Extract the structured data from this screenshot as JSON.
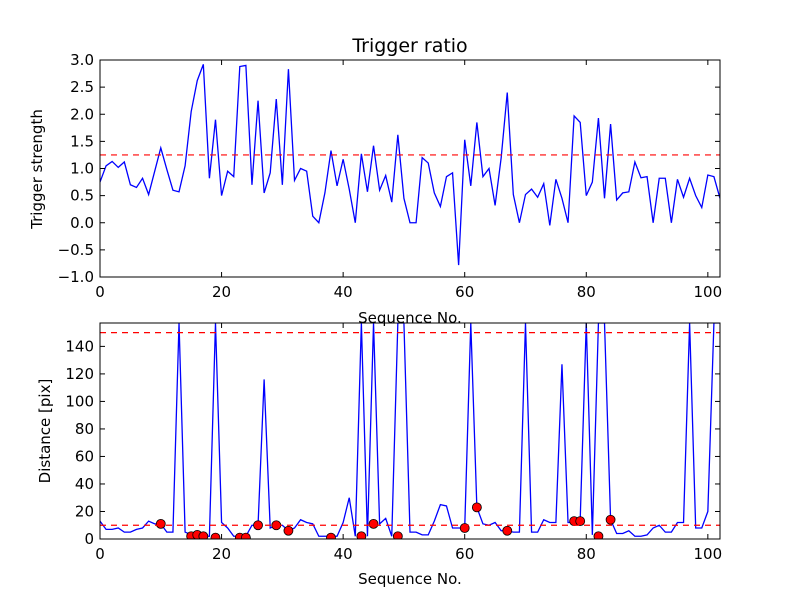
{
  "chart_data": [
    {
      "type": "line",
      "title": "Trigger ratio",
      "xlabel": "Sequence No.",
      "ylabel": "Trigger strength",
      "xlim": [
        0,
        102
      ],
      "ylim": [
        -1.0,
        3.0
      ],
      "xticks": [
        0,
        20,
        40,
        60,
        80,
        100
      ],
      "yticks": [
        -1.0,
        -0.5,
        0.0,
        0.5,
        1.0,
        1.5,
        2.0,
        2.5,
        3.0
      ],
      "ytick_labels": [
        "−1.0",
        "−0.5",
        "0.0",
        "0.5",
        "1.0",
        "1.5",
        "2.0",
        "2.5",
        "3.0"
      ],
      "grid": false,
      "series": [
        {
          "color": "#0000ff",
          "x": [
            0,
            1,
            2,
            3,
            4,
            5,
            6,
            7,
            8,
            9,
            10,
            11,
            12,
            13,
            14,
            15,
            16,
            17,
            18,
            19,
            20,
            21,
            22,
            23,
            24,
            25,
            26,
            27,
            28,
            29,
            30,
            31,
            32,
            33,
            34,
            35,
            36,
            37,
            38,
            39,
            40,
            41,
            42,
            43,
            44,
            45,
            46,
            47,
            48,
            49,
            50,
            51,
            52,
            53,
            54,
            55,
            56,
            57,
            58,
            59,
            60,
            61,
            62,
            63,
            64,
            65,
            66,
            67,
            68,
            69,
            70,
            71,
            72,
            73,
            74,
            75,
            76,
            77,
            78,
            79,
            80,
            81,
            82,
            83,
            84,
            85,
            86,
            87,
            88,
            89,
            90,
            91,
            92,
            93,
            94,
            95,
            96,
            97,
            98,
            99,
            100,
            101,
            102
          ],
          "y": [
            0.75,
            1.05,
            1.13,
            1.02,
            1.12,
            0.7,
            0.65,
            0.82,
            0.52,
            0.95,
            1.38,
            0.98,
            0.6,
            0.57,
            1.05,
            2.05,
            2.62,
            2.92,
            0.82,
            1.9,
            0.5,
            0.95,
            0.85,
            2.88,
            2.9,
            0.7,
            2.25,
            0.55,
            0.92,
            2.28,
            0.7,
            2.83,
            0.78,
            1.0,
            0.95,
            0.12,
            0.0,
            0.55,
            1.33,
            0.68,
            1.17,
            0.62,
            0.0,
            1.27,
            0.57,
            1.42,
            0.6,
            0.87,
            0.38,
            1.62,
            0.45,
            0.0,
            0.0,
            1.2,
            1.1,
            0.55,
            0.3,
            0.85,
            0.92,
            -0.78,
            1.53,
            0.68,
            1.85,
            0.85,
            1.0,
            0.32,
            1.2,
            2.4,
            0.52,
            0.0,
            0.52,
            0.62,
            0.47,
            0.72,
            -0.05,
            0.8,
            0.45,
            0.0,
            1.97,
            1.85,
            0.5,
            0.75,
            1.93,
            0.45,
            1.82,
            0.42,
            0.55,
            0.57,
            1.12,
            0.83,
            0.85,
            0.0,
            0.82,
            0.82,
            0.0,
            0.8,
            0.47,
            0.82,
            0.5,
            0.28,
            0.88,
            0.85,
            0.45
          ]
        },
        {
          "color": "#ff0000",
          "style": "dashed",
          "x": [
            0,
            102
          ],
          "y": [
            1.25,
            1.25
          ]
        }
      ]
    },
    {
      "type": "line",
      "title": "",
      "xlabel": "Sequence No.",
      "ylabel": "Distance [pix]",
      "xlim": [
        0,
        102
      ],
      "ylim": [
        0,
        157
      ],
      "xticks": [
        0,
        20,
        40,
        60,
        80,
        100
      ],
      "yticks": [
        0,
        20,
        40,
        60,
        80,
        100,
        120,
        140
      ],
      "grid": false,
      "series": [
        {
          "color": "#0000ff",
          "x": [
            0,
            1,
            2,
            3,
            4,
            5,
            6,
            7,
            8,
            9,
            10,
            11,
            12,
            13,
            14,
            15,
            16,
            17,
            18,
            19,
            20,
            21,
            22,
            23,
            24,
            25,
            26,
            27,
            28,
            29,
            30,
            31,
            32,
            33,
            34,
            35,
            36,
            37,
            38,
            39,
            40,
            41,
            42,
            43,
            44,
            45,
            46,
            47,
            48,
            49,
            50,
            51,
            52,
            53,
            54,
            55,
            56,
            57,
            58,
            59,
            60,
            61,
            62,
            63,
            64,
            65,
            66,
            67,
            68,
            69,
            70,
            71,
            72,
            73,
            74,
            75,
            76,
            77,
            78,
            79,
            80,
            81,
            82,
            83,
            84,
            85,
            86,
            87,
            88,
            89,
            90,
            91,
            92,
            93,
            94,
            95,
            96,
            97,
            98,
            99,
            100,
            101,
            102
          ],
          "y": [
            13,
            7,
            7,
            8,
            5,
            5,
            7,
            8,
            13,
            11,
            11,
            5,
            5,
            157,
            5,
            3,
            3,
            2,
            2,
            157,
            12,
            8,
            2,
            2,
            2,
            10,
            10,
            116,
            8,
            10,
            10,
            6,
            8,
            14,
            12,
            11,
            2,
            2,
            2,
            2,
            12,
            30,
            2,
            157,
            2,
            157,
            11,
            15,
            2,
            157,
            157,
            5,
            5,
            3,
            3,
            13,
            25,
            24,
            8,
            8,
            8,
            157,
            23,
            11,
            10,
            12,
            6,
            6,
            5,
            5,
            157,
            5,
            5,
            14,
            12,
            12,
            127,
            12,
            12,
            14,
            157,
            3,
            157,
            157,
            14,
            4,
            4,
            6,
            2,
            2,
            3,
            8,
            10,
            5,
            5,
            12,
            12,
            157,
            8,
            8,
            20,
            157,
            157
          ]
        },
        {
          "color": "#ff0000",
          "style": "markers",
          "x": [
            10,
            15,
            16,
            17,
            19,
            23,
            24,
            26,
            29,
            31,
            38,
            43,
            45,
            49,
            60,
            62,
            67,
            78,
            79,
            82,
            84
          ],
          "y": [
            11,
            2,
            3,
            2,
            1,
            1,
            1,
            10,
            10,
            6,
            1,
            2,
            11,
            2,
            8,
            23,
            6,
            13,
            13,
            2,
            14
          ]
        },
        {
          "color": "#ff0000",
          "style": "dashed",
          "x": [
            0,
            102
          ],
          "y": [
            150,
            150
          ]
        },
        {
          "color": "#ff0000",
          "style": "dashed",
          "x": [
            0,
            102
          ],
          "y": [
            10,
            10
          ]
        }
      ]
    }
  ]
}
